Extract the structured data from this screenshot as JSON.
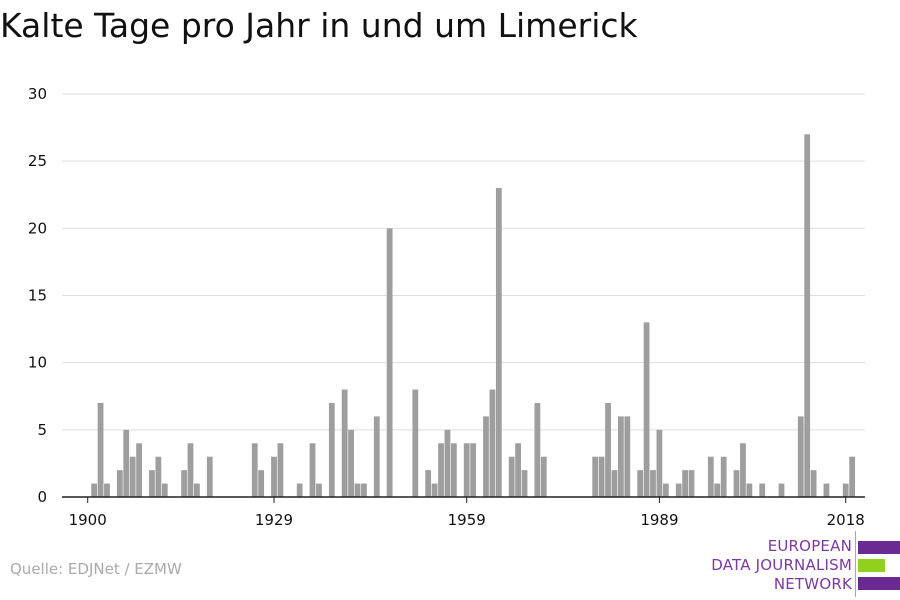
{
  "title": "Kalte Tage pro Jahr in und um Limerick",
  "source": "Quelle: EDJNet / EZMW",
  "logo": {
    "lines": [
      "EUROPEAN",
      "DATA JOURNALISM",
      "NETWORK"
    ],
    "colors": [
      "#6a2a91",
      "#8fd11c",
      "#6a2a91"
    ]
  },
  "colors": {
    "bar": "#9e9e9e",
    "grid": "#dddddd",
    "axis": "#222222",
    "text": "#111111"
  },
  "chart_data": {
    "type": "bar",
    "title": "Kalte Tage pro Jahr in und um Limerick",
    "xlabel": "",
    "ylabel": "",
    "ylim": [
      0,
      30
    ],
    "yticks": [
      0,
      5,
      10,
      15,
      20,
      25,
      30
    ],
    "xticks": [
      1900,
      1929,
      1959,
      1989,
      2018
    ],
    "xlim": [
      1896,
      2021
    ],
    "grid": true,
    "x": [
      1900,
      1901,
      1902,
      1903,
      1904,
      1905,
      1906,
      1907,
      1908,
      1909,
      1910,
      1911,
      1912,
      1913,
      1914,
      1915,
      1916,
      1917,
      1918,
      1919,
      1920,
      1921,
      1922,
      1923,
      1924,
      1925,
      1926,
      1927,
      1928,
      1929,
      1930,
      1931,
      1932,
      1933,
      1934,
      1935,
      1936,
      1937,
      1938,
      1939,
      1940,
      1941,
      1942,
      1943,
      1944,
      1945,
      1946,
      1947,
      1948,
      1949,
      1950,
      1951,
      1952,
      1953,
      1954,
      1955,
      1956,
      1957,
      1958,
      1959,
      1960,
      1961,
      1962,
      1963,
      1964,
      1965,
      1966,
      1967,
      1968,
      1969,
      1970,
      1971,
      1972,
      1973,
      1974,
      1975,
      1976,
      1977,
      1978,
      1979,
      1980,
      1981,
      1982,
      1983,
      1984,
      1985,
      1986,
      1987,
      1988,
      1989,
      1990,
      1991,
      1992,
      1993,
      1994,
      1995,
      1996,
      1997,
      1998,
      1999,
      2000,
      2001,
      2002,
      2003,
      2004,
      2005,
      2006,
      2007,
      2008,
      2009,
      2010,
      2011,
      2012,
      2013,
      2014,
      2015,
      2016,
      2017,
      2018,
      2019
    ],
    "values": [
      0,
      1,
      7,
      1,
      0,
      2,
      5,
      3,
      4,
      0,
      2,
      3,
      1,
      0,
      0,
      2,
      4,
      1,
      0,
      3,
      0,
      0,
      0,
      0,
      0,
      0,
      4,
      2,
      0,
      3,
      4,
      0,
      0,
      1,
      0,
      4,
      1,
      0,
      7,
      0,
      8,
      5,
      1,
      1,
      0,
      6,
      0,
      20,
      0,
      0,
      0,
      8,
      0,
      2,
      1,
      4,
      5,
      4,
      0,
      4,
      4,
      0,
      6,
      8,
      23,
      0,
      3,
      4,
      2,
      0,
      7,
      3,
      0,
      0,
      0,
      0,
      0,
      0,
      0,
      3,
      3,
      7,
      2,
      6,
      6,
      0,
      2,
      13,
      2,
      5,
      1,
      0,
      1,
      2,
      2,
      0,
      0,
      3,
      1,
      3,
      0,
      2,
      4,
      1,
      0,
      1,
      0,
      0,
      1,
      0,
      0,
      6,
      27,
      2,
      0,
      1,
      0,
      0,
      1,
      3
    ]
  }
}
